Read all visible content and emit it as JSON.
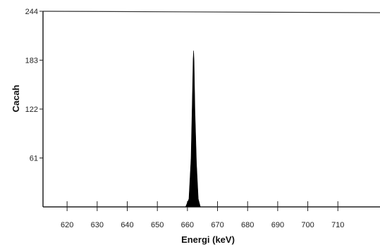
{
  "chart_data": {
    "type": "area",
    "title": "",
    "xlabel": "Energi (keV)",
    "ylabel": "Cacah",
    "xlim": [
      612,
      724
    ],
    "ylim": [
      0,
      244
    ],
    "x_ticks": [
      620,
      630,
      640,
      650,
      660,
      670,
      680,
      690,
      700,
      710
    ],
    "y_ticks": [
      61,
      122,
      183,
      244
    ],
    "grid": false,
    "legend": "none",
    "fill_color": "#000000",
    "series": [
      {
        "x": [
          659.4,
          660.5,
          661.2,
          661.6,
          661.9,
          662.05,
          662.2,
          662.5,
          663.0,
          663.6,
          664.3
        ],
        "y": [
          0,
          10,
          60,
          130,
          185,
          195,
          182,
          120,
          55,
          10,
          0
        ]
      }
    ]
  }
}
